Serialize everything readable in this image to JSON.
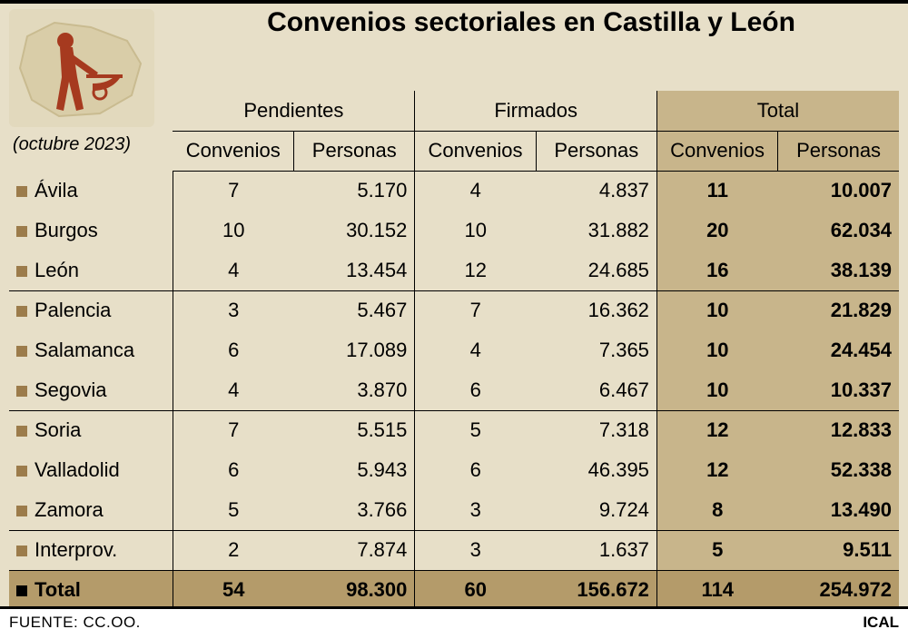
{
  "title": "Convenios sectoriales en Castilla y León",
  "subtitle": "(octubre 2023)",
  "source_label": "FUENTE: CC.OO.",
  "credit": "ICAL",
  "groups": [
    {
      "label": "Pendientes"
    },
    {
      "label": "Firmados"
    },
    {
      "label": "Total"
    }
  ],
  "subheaders": {
    "convenios": "Convenios",
    "personas": "Personas"
  },
  "rows": [
    {
      "prov": "Ávila",
      "p_c": "7",
      "p_p": "5.170",
      "f_c": "4",
      "f_p": "4.837",
      "t_c": "11",
      "t_p": "10.007"
    },
    {
      "prov": "Burgos",
      "p_c": "10",
      "p_p": "30.152",
      "f_c": "10",
      "f_p": "31.882",
      "t_c": "20",
      "t_p": "62.034"
    },
    {
      "prov": "León",
      "p_c": "4",
      "p_p": "13.454",
      "f_c": "12",
      "f_p": "24.685",
      "t_c": "16",
      "t_p": "38.139"
    },
    {
      "prov": "Palencia",
      "p_c": "3",
      "p_p": "5.467",
      "f_c": "7",
      "f_p": "16.362",
      "t_c": "10",
      "t_p": "21.829"
    },
    {
      "prov": "Salamanca",
      "p_c": "6",
      "p_p": "17.089",
      "f_c": "4",
      "f_p": "7.365",
      "t_c": "10",
      "t_p": "24.454"
    },
    {
      "prov": "Segovia",
      "p_c": "4",
      "p_p": "3.870",
      "f_c": "6",
      "f_p": "6.467",
      "t_c": "10",
      "t_p": "10.337"
    },
    {
      "prov": "Soria",
      "p_c": "7",
      "p_p": "5.515",
      "f_c": "5",
      "f_p": "7.318",
      "t_c": "12",
      "t_p": "12.833"
    },
    {
      "prov": "Valladolid",
      "p_c": "6",
      "p_p": "5.943",
      "f_c": "6",
      "f_p": "46.395",
      "t_c": "12",
      "t_p": "52.338"
    },
    {
      "prov": "Zamora",
      "p_c": "5",
      "p_p": "3.766",
      "f_c": "3",
      "f_p": "9.724",
      "t_c": "8",
      "t_p": "13.490"
    },
    {
      "prov": "Interprov.",
      "p_c": "2",
      "p_p": "7.874",
      "f_c": "3",
      "f_p": "1.637",
      "t_c": "5",
      "t_p": "9.511"
    }
  ],
  "total_row": {
    "label": "Total",
    "p_c": "54",
    "p_p": "98.300",
    "f_c": "60",
    "f_p": "156.672",
    "t_c": "114",
    "t_p": "254.972"
  },
  "styling": {
    "background_color": "#e7dfc8",
    "total_group_bg": "#c8b58b",
    "total_row_bg": "#b49b6a",
    "bullet_color": "#9c7c4b",
    "bullet_color_total": "#000000",
    "border_color": "#000000",
    "title_fontsize": 30,
    "cell_fontsize": 22,
    "footer_bg": "#ffffff",
    "column_widths": {
      "province": 180,
      "data": 133
    }
  }
}
